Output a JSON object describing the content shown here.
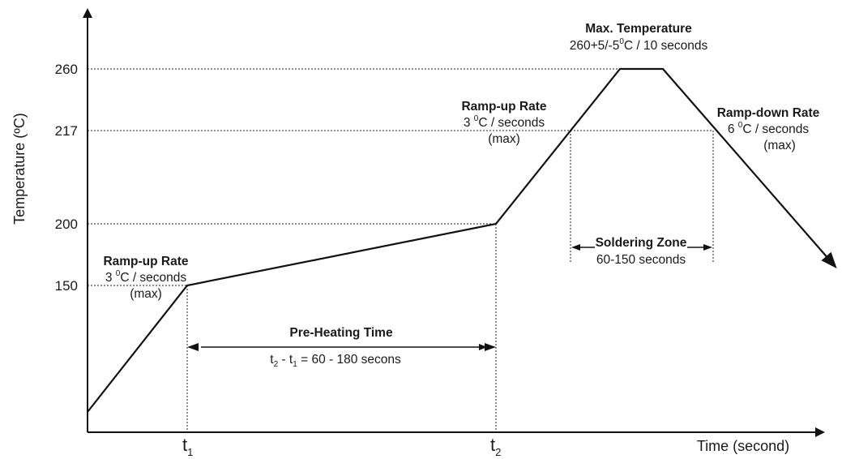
{
  "axes": {
    "y_title": "Temperature (ºC)",
    "x_title": "Time (second)"
  },
  "y_ticks": [
    "260",
    "217",
    "200",
    "150"
  ],
  "x_ticks": {
    "t1": {
      "base": "t",
      "sub": "1"
    },
    "t2": {
      "base": "t",
      "sub": "2"
    }
  },
  "annotations": {
    "rampup_1": {
      "title": "Ramp-up Rate",
      "line_a": "3 ",
      "line_sup": "0",
      "line_b": "C / seconds",
      "line3": "(max)"
    },
    "rampup_2": {
      "title": "Ramp-up Rate",
      "line_a": "3 ",
      "line_sup": "0",
      "line_b": "C / seconds",
      "line3": "(max)"
    },
    "rampdown": {
      "title": "Ramp-down Rate",
      "line_a": "6 ",
      "line_sup": "0",
      "line_b": "C / seconds",
      "line3": "(max)"
    },
    "max_temp": {
      "title": "Max. Temperature",
      "line_a": "260+5/-5",
      "line_sup": "0",
      "line_b": "C / 10 seconds"
    },
    "preheat": {
      "title": "Pre-Heating Time",
      "p1": "t",
      "s1": "2",
      "p2": " - t",
      "s2": "1",
      "p3": " = 60 - 180 secons"
    },
    "solder": {
      "title": "Soldering Zone",
      "line2": "60-150 seconds"
    }
  }
}
